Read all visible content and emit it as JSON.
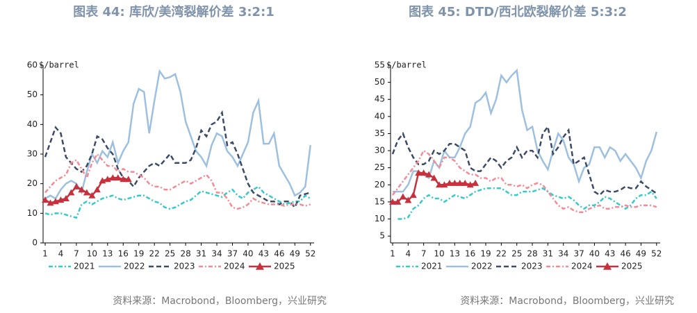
{
  "chart_data": [
    {
      "type": "line",
      "title": "图表 44: 库欣/美湾裂解价差 3:2:1",
      "y_label": "$/barrel",
      "source": "资料来源：Macrobond，Bloomberg，兴业研究",
      "x": [
        1,
        2,
        3,
        4,
        5,
        6,
        7,
        8,
        9,
        10,
        11,
        12,
        13,
        14,
        15,
        16,
        17,
        18,
        19,
        20,
        21,
        22,
        23,
        24,
        25,
        26,
        27,
        28,
        29,
        30,
        31,
        32,
        33,
        34,
        35,
        36,
        37,
        38,
        39,
        40,
        41,
        42,
        43,
        44,
        45,
        46,
        47,
        48,
        49,
        50,
        51,
        52
      ],
      "xlim": [
        0.6,
        52.7
      ],
      "xticks": [
        1,
        4,
        7,
        10,
        13,
        16,
        19,
        22,
        25,
        28,
        31,
        34,
        37,
        40,
        43,
        46,
        49,
        52
      ],
      "ylim": [
        0,
        60
      ],
      "yticks": [
        0,
        10,
        20,
        30,
        40,
        50,
        60
      ],
      "series": [
        {
          "name": "2021",
          "color": "#35c9c9",
          "style": "dashdot",
          "values": [
            10,
            9.5,
            10,
            10,
            9.5,
            9,
            8.5,
            13,
            14,
            13,
            14,
            15,
            15.5,
            16,
            15,
            14.5,
            15,
            15.5,
            16,
            16,
            15,
            14,
            13.5,
            12,
            11.5,
            12,
            13,
            14,
            14.5,
            16,
            17.5,
            17,
            16.5,
            16,
            15.5,
            17,
            18,
            16,
            15,
            17,
            18,
            19,
            17,
            16,
            15,
            14,
            13,
            13.5,
            14,
            14,
            16,
            15
          ]
        },
        {
          "name": "2022",
          "color": "#9dc0df",
          "style": "solid",
          "values": [
            15,
            16,
            15,
            18,
            20,
            21,
            20,
            17,
            24,
            30,
            27,
            31,
            29,
            34,
            27,
            31,
            34,
            47,
            52,
            51,
            37,
            48,
            58,
            55.5,
            56,
            57,
            51,
            41,
            36,
            31,
            29,
            26,
            33,
            37,
            36,
            31,
            29,
            26,
            30,
            34,
            44,
            48,
            33.5,
            33.5,
            37,
            26,
            23,
            20,
            16,
            17,
            19,
            33
          ]
        },
        {
          "name": "2023",
          "color": "#3b4b66",
          "style": "dash",
          "values": [
            29,
            34,
            39,
            37,
            29,
            27,
            25,
            24,
            26,
            30,
            36,
            35,
            32,
            30,
            25,
            22,
            21,
            19,
            22,
            24,
            26,
            27,
            26,
            28,
            30,
            27,
            27,
            27,
            28,
            32,
            38,
            36,
            40,
            41,
            44,
            33,
            34,
            30,
            25,
            20,
            17,
            16,
            15,
            14,
            14,
            13,
            14,
            14,
            12,
            16,
            16.5,
            17
          ]
        },
        {
          "name": "2024",
          "color": "#f28b95",
          "style": "dashdot",
          "values": [
            17,
            19,
            21,
            22,
            23,
            27,
            28,
            25,
            22,
            27,
            30,
            28,
            26,
            26,
            24,
            25,
            24,
            24,
            23,
            22,
            20,
            19,
            19,
            18,
            18,
            19,
            20,
            21,
            20,
            21,
            22,
            23,
            21,
            17,
            17,
            15,
            12,
            11.5,
            12,
            13,
            15,
            14,
            13.5,
            13,
            13,
            13,
            12.5,
            13,
            13,
            13,
            12.5,
            13
          ]
        },
        {
          "name": "2025",
          "color": "#c6313d",
          "style": "solid",
          "marker": "triangle",
          "values": [
            14.5,
            13.5,
            14,
            14.5,
            15,
            17,
            19,
            18,
            17,
            16,
            18,
            21,
            21.5,
            22,
            22,
            21.5,
            21.5,
            null,
            null,
            null,
            null,
            null,
            null,
            null,
            null,
            null,
            null,
            null,
            null,
            null,
            null,
            null,
            null,
            null,
            null,
            null,
            null,
            null,
            null,
            null,
            null,
            null,
            null,
            null,
            null,
            null,
            null,
            null,
            null,
            null,
            null,
            null
          ]
        }
      ]
    },
    {
      "type": "line",
      "title": "图表 45: DTD/西北欧裂解价差 5:3:2",
      "y_label": "$/barrel",
      "source": "资料来源：Macrobond，Bloomberg，兴业研究",
      "x": [
        1,
        2,
        3,
        4,
        5,
        6,
        7,
        8,
        9,
        10,
        11,
        12,
        13,
        14,
        15,
        16,
        17,
        18,
        19,
        20,
        21,
        22,
        23,
        24,
        25,
        26,
        27,
        28,
        29,
        30,
        31,
        32,
        33,
        34,
        35,
        36,
        37,
        38,
        39,
        40,
        41,
        42,
        43,
        44,
        45,
        46,
        47,
        48,
        49,
        50,
        51,
        52
      ],
      "xlim": [
        0.6,
        52.7
      ],
      "xticks": [
        1,
        4,
        7,
        10,
        13,
        16,
        19,
        22,
        25,
        28,
        31,
        34,
        37,
        40,
        43,
        46,
        49,
        52
      ],
      "ylim": [
        3,
        55
      ],
      "yticks": [
        5,
        10,
        15,
        20,
        25,
        30,
        35,
        40,
        45,
        50,
        55
      ],
      "series": [
        {
          "name": "2021",
          "color": "#35c9c9",
          "style": "dashdot",
          "values": [
            null,
            10,
            10,
            10.5,
            13,
            14,
            16,
            17,
            16,
            16,
            15,
            16,
            17,
            16.5,
            16,
            17,
            18,
            18.5,
            19,
            19,
            19,
            19,
            18,
            17,
            17,
            18,
            18,
            18,
            18.5,
            19,
            18,
            17,
            16.5,
            16,
            16.5,
            15.5,
            14,
            13,
            14,
            14,
            15,
            16.5,
            16,
            15,
            14,
            13,
            14,
            16,
            17,
            17,
            18,
            16
          ]
        },
        {
          "name": "2022",
          "color": "#9dc0df",
          "style": "solid",
          "values": [
            18,
            18,
            18,
            20,
            24,
            24,
            23,
            22,
            27,
            25,
            30,
            28,
            28,
            31,
            35,
            37,
            44,
            45,
            47,
            41,
            45,
            52,
            50,
            52,
            53.5,
            42,
            36,
            37,
            30,
            27,
            24.5,
            30,
            35,
            33,
            28,
            26,
            21,
            25,
            26,
            31,
            31,
            28,
            31,
            30,
            27,
            29,
            27,
            25,
            22,
            27,
            30,
            35.5
          ]
        },
        {
          "name": "2023",
          "color": "#3b4b66",
          "style": "dash",
          "values": [
            29,
            33,
            35,
            31,
            28,
            26,
            26,
            27,
            30,
            29,
            30,
            32,
            32,
            31,
            30,
            25,
            24,
            24,
            26,
            28,
            27,
            25,
            27,
            28,
            31,
            28,
            30,
            30,
            28,
            35,
            37,
            29,
            31,
            34,
            36,
            26,
            27,
            28,
            23,
            18,
            17,
            18.5,
            18,
            18,
            18.5,
            19.5,
            19,
            19,
            21,
            19.5,
            18.5,
            17.5
          ]
        },
        {
          "name": "2024",
          "color": "#f28b95",
          "style": "dashdot",
          "values": [
            17,
            19,
            21,
            23,
            25,
            27,
            30,
            29,
            27,
            25,
            28,
            28,
            27,
            25,
            24,
            23,
            23,
            22,
            22,
            21,
            22,
            22,
            20,
            20,
            19.5,
            20,
            19,
            20,
            20.5,
            20,
            18,
            16,
            14,
            13,
            13.5,
            12.5,
            12,
            12,
            13,
            13.5,
            14,
            13,
            13,
            13.5,
            13.5,
            14,
            13.5,
            13.5,
            14,
            14,
            14,
            13.5
          ]
        },
        {
          "name": "2025",
          "color": "#c6313d",
          "style": "solid",
          "marker": "triangle",
          "values": [
            15,
            15,
            16.5,
            15.5,
            17,
            23.5,
            23.5,
            23,
            22,
            20,
            20,
            20.5,
            20.5,
            20.5,
            20.5,
            20,
            20.5,
            null,
            null,
            null,
            null,
            null,
            null,
            null,
            null,
            null,
            null,
            null,
            null,
            null,
            null,
            null,
            null,
            null,
            null,
            null,
            null,
            null,
            null,
            null,
            null,
            null,
            null,
            null,
            null,
            null,
            null,
            null,
            null,
            null,
            null,
            null
          ]
        }
      ]
    }
  ]
}
